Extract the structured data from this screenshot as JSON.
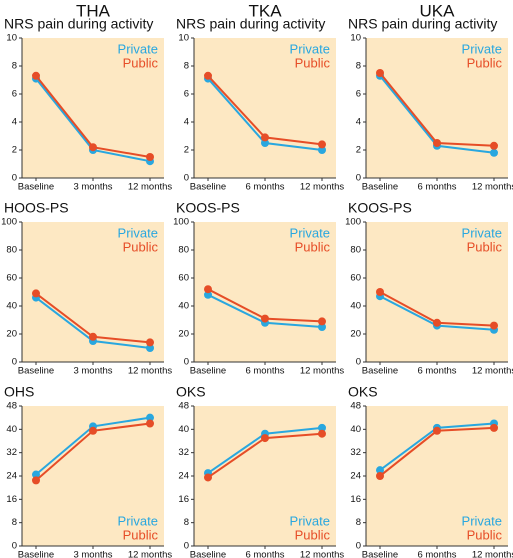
{
  "columns": [
    "THA",
    "TKA",
    "UKA"
  ],
  "chart_data": [
    {
      "type": "line",
      "title": "NRS pain during activity",
      "categories": [
        "Baseline",
        "3 months",
        "12 months"
      ],
      "series": [
        {
          "name": "Private",
          "color": "#29a7df",
          "values": [
            7.1,
            2.0,
            1.2
          ]
        },
        {
          "name": "Public",
          "color": "#e64d27",
          "values": [
            7.3,
            2.2,
            1.5
          ]
        }
      ],
      "ylim": [
        0,
        10
      ],
      "yticks": [
        0,
        2,
        4,
        6,
        8,
        10
      ],
      "legend": "upper right"
    },
    {
      "type": "line",
      "title": "NRS pain during activity",
      "categories": [
        "Baseline",
        "6 months",
        "12 months"
      ],
      "series": [
        {
          "name": "Private",
          "color": "#29a7df",
          "values": [
            7.1,
            2.5,
            2.0
          ]
        },
        {
          "name": "Public",
          "color": "#e64d27",
          "values": [
            7.3,
            2.9,
            2.4
          ]
        }
      ],
      "ylim": [
        0,
        10
      ],
      "yticks": [
        0,
        2,
        4,
        6,
        8,
        10
      ],
      "legend": "upper right"
    },
    {
      "type": "line",
      "title": "NRS pain during activity",
      "categories": [
        "Baseline",
        "6 months",
        "12 months"
      ],
      "series": [
        {
          "name": "Private",
          "color": "#29a7df",
          "values": [
            7.3,
            2.3,
            1.8
          ]
        },
        {
          "name": "Public",
          "color": "#e64d27",
          "values": [
            7.5,
            2.5,
            2.3
          ]
        }
      ],
      "ylim": [
        0,
        10
      ],
      "yticks": [
        0,
        2,
        4,
        6,
        8,
        10
      ],
      "legend": "upper right"
    },
    {
      "type": "line",
      "title": "HOOS-PS",
      "categories": [
        "Baseline",
        "3 months",
        "12 months"
      ],
      "series": [
        {
          "name": "Private",
          "color": "#29a7df",
          "values": [
            46,
            15,
            10
          ]
        },
        {
          "name": "Public",
          "color": "#e64d27",
          "values": [
            49,
            18,
            14
          ]
        }
      ],
      "ylim": [
        0,
        100
      ],
      "yticks": [
        0,
        20,
        40,
        60,
        80,
        100
      ],
      "legend": "upper right"
    },
    {
      "type": "line",
      "title": "KOOS-PS",
      "categories": [
        "Baseline",
        "6 months",
        "12 months"
      ],
      "series": [
        {
          "name": "Private",
          "color": "#29a7df",
          "values": [
            48,
            28,
            25
          ]
        },
        {
          "name": "Public",
          "color": "#e64d27",
          "values": [
            52,
            31,
            29
          ]
        }
      ],
      "ylim": [
        0,
        100
      ],
      "yticks": [
        0,
        20,
        40,
        60,
        80,
        100
      ],
      "legend": "upper right"
    },
    {
      "type": "line",
      "title": "KOOS-PS",
      "categories": [
        "Baseline",
        "6 months",
        "12 months"
      ],
      "series": [
        {
          "name": "Private",
          "color": "#29a7df",
          "values": [
            47,
            26,
            23
          ]
        },
        {
          "name": "Public",
          "color": "#e64d27",
          "values": [
            50,
            28,
            26
          ]
        }
      ],
      "ylim": [
        0,
        100
      ],
      "yticks": [
        0,
        20,
        40,
        60,
        80,
        100
      ],
      "legend": "upper right"
    },
    {
      "type": "line",
      "title": "OHS",
      "categories": [
        "Baseline",
        "3 months",
        "12 months"
      ],
      "series": [
        {
          "name": "Private",
          "color": "#29a7df",
          "values": [
            24.5,
            41,
            44
          ]
        },
        {
          "name": "Public",
          "color": "#e64d27",
          "values": [
            22.5,
            39.5,
            42
          ]
        }
      ],
      "ylim": [
        0,
        48
      ],
      "yticks": [
        0,
        8,
        16,
        24,
        32,
        40,
        48
      ],
      "legend": "lower right"
    },
    {
      "type": "line",
      "title": "OKS",
      "categories": [
        "Baseline",
        "6 months",
        "12 months"
      ],
      "series": [
        {
          "name": "Private",
          "color": "#29a7df",
          "values": [
            25,
            38.5,
            40.5
          ]
        },
        {
          "name": "Public",
          "color": "#e64d27",
          "values": [
            23.5,
            37,
            38.5
          ]
        }
      ],
      "ylim": [
        0,
        48
      ],
      "yticks": [
        0,
        8,
        16,
        24,
        32,
        40,
        48
      ],
      "legend": "lower right"
    },
    {
      "type": "line",
      "title": "OKS",
      "categories": [
        "Baseline",
        "6 months",
        "12 months"
      ],
      "series": [
        {
          "name": "Private",
          "color": "#29a7df",
          "values": [
            26,
            40.5,
            42
          ]
        },
        {
          "name": "Public",
          "color": "#e64d27",
          "values": [
            24,
            39.5,
            40.5
          ]
        }
      ],
      "ylim": [
        0,
        48
      ],
      "yticks": [
        0,
        8,
        16,
        24,
        32,
        40,
        48
      ],
      "legend": "lower right"
    }
  ]
}
